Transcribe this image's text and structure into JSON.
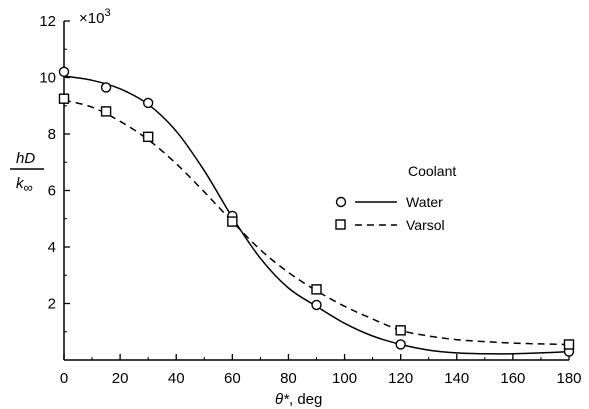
{
  "chart_data": {
    "type": "line",
    "title": "",
    "xlabel_symbol": "θ*",
    "xlabel_unit": ", deg",
    "ylabel_numerator": "hD",
    "ylabel_denominator": "k",
    "ylabel_subscript": "∞",
    "y_multiplier": "×10",
    "y_multiplier_exponent": "3",
    "xlim": [
      0,
      180
    ],
    "ylim": [
      0,
      12
    ],
    "x_ticks": [
      0,
      20,
      40,
      60,
      80,
      100,
      120,
      140,
      160,
      180
    ],
    "y_ticks": [
      2,
      4,
      6,
      8,
      10,
      12
    ],
    "legend_title": "Coolant",
    "legend_position": "right",
    "grid": false,
    "series": [
      {
        "name": "Water",
        "marker": "circle",
        "line_style": "solid",
        "points": [
          [
            0,
            10.2
          ],
          [
            15,
            9.65
          ],
          [
            30,
            9.1
          ],
          [
            60,
            5.1
          ],
          [
            90,
            1.95
          ],
          [
            120,
            0.55
          ],
          [
            180,
            0.3
          ]
        ],
        "curve": [
          [
            0,
            10.05
          ],
          [
            10,
            9.9
          ],
          [
            20,
            9.6
          ],
          [
            30,
            9.05
          ],
          [
            40,
            8.1
          ],
          [
            50,
            6.7
          ],
          [
            60,
            5.05
          ],
          [
            70,
            3.6
          ],
          [
            80,
            2.55
          ],
          [
            90,
            1.9
          ],
          [
            100,
            1.3
          ],
          [
            110,
            0.85
          ],
          [
            120,
            0.55
          ],
          [
            130,
            0.35
          ],
          [
            140,
            0.25
          ],
          [
            150,
            0.22
          ],
          [
            160,
            0.22
          ],
          [
            170,
            0.25
          ],
          [
            180,
            0.3
          ]
        ]
      },
      {
        "name": "Varsol",
        "marker": "square",
        "line_style": "dashed",
        "points": [
          [
            0,
            9.25
          ],
          [
            15,
            8.8
          ],
          [
            30,
            7.9
          ],
          [
            60,
            4.9
          ],
          [
            90,
            2.5
          ],
          [
            120,
            1.05
          ],
          [
            180,
            0.55
          ]
        ],
        "curve": [
          [
            0,
            9.2
          ],
          [
            10,
            8.95
          ],
          [
            20,
            8.45
          ],
          [
            30,
            7.8
          ],
          [
            40,
            6.95
          ],
          [
            50,
            5.95
          ],
          [
            60,
            4.9
          ],
          [
            70,
            3.9
          ],
          [
            80,
            3.1
          ],
          [
            90,
            2.45
          ],
          [
            100,
            1.9
          ],
          [
            110,
            1.45
          ],
          [
            120,
            1.05
          ],
          [
            130,
            0.85
          ],
          [
            140,
            0.72
          ],
          [
            150,
            0.65
          ],
          [
            160,
            0.6
          ],
          [
            170,
            0.57
          ],
          [
            180,
            0.55
          ]
        ]
      }
    ]
  }
}
